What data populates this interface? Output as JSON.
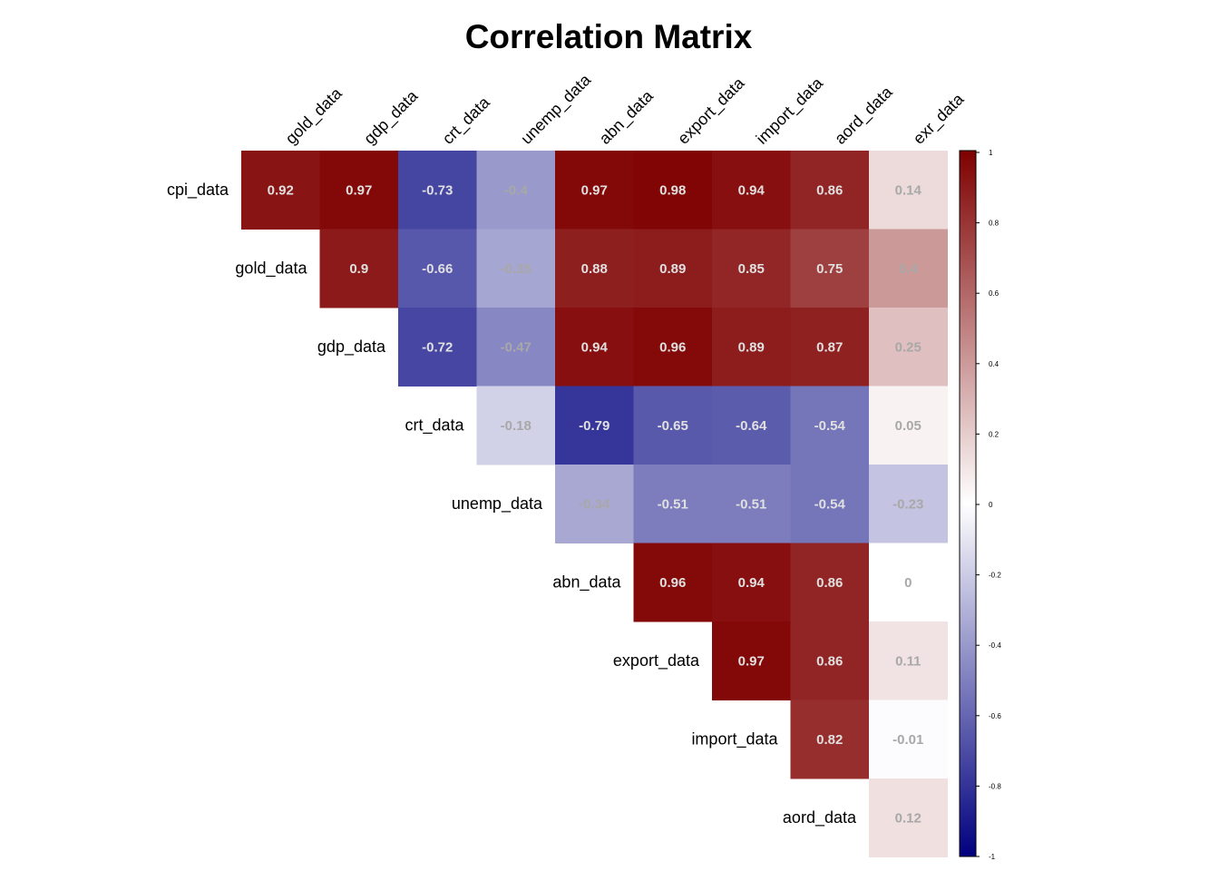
{
  "chart_data": {
    "type": "heatmap",
    "title": "Correlation Matrix",
    "layout": "upper-triangle",
    "rows": [
      "cpi_data",
      "gold_data",
      "gdp_data",
      "crt_data",
      "unemp_data",
      "abn_data",
      "export_data",
      "import_data",
      "aord_data"
    ],
    "columns": [
      "gold_data",
      "gdp_data",
      "crt_data",
      "unemp_data",
      "abn_data",
      "export_data",
      "import_data",
      "aord_data",
      "exr_data"
    ],
    "values": [
      [
        0.92,
        0.97,
        -0.73,
        -0.4,
        0.97,
        0.98,
        0.94,
        0.86,
        0.14
      ],
      [
        0.9,
        -0.66,
        -0.35,
        0.88,
        0.89,
        0.85,
        0.75,
        0.4
      ],
      [
        -0.72,
        -0.47,
        0.94,
        0.96,
        0.89,
        0.87,
        0.25
      ],
      [
        -0.18,
        -0.79,
        -0.65,
        -0.64,
        -0.54,
        0.05
      ],
      [
        -0.34,
        -0.51,
        -0.51,
        -0.54,
        -0.23
      ],
      [
        0.96,
        0.94,
        0.86,
        0
      ],
      [
        0.97,
        0.86,
        0.11
      ],
      [
        0.82,
        -0.01
      ],
      [
        0.12
      ]
    ],
    "color_scale": {
      "low": "#00007f",
      "mid": "#ffffff",
      "high": "#7f0000",
      "range": [
        -1,
        1
      ]
    },
    "legend_ticks": [
      "1",
      "0.8",
      "0.6",
      "0.4",
      "0.2",
      "0",
      "-0.2",
      "-0.4",
      "-0.6",
      "-0.8",
      "-1"
    ],
    "legend_position": "right"
  }
}
